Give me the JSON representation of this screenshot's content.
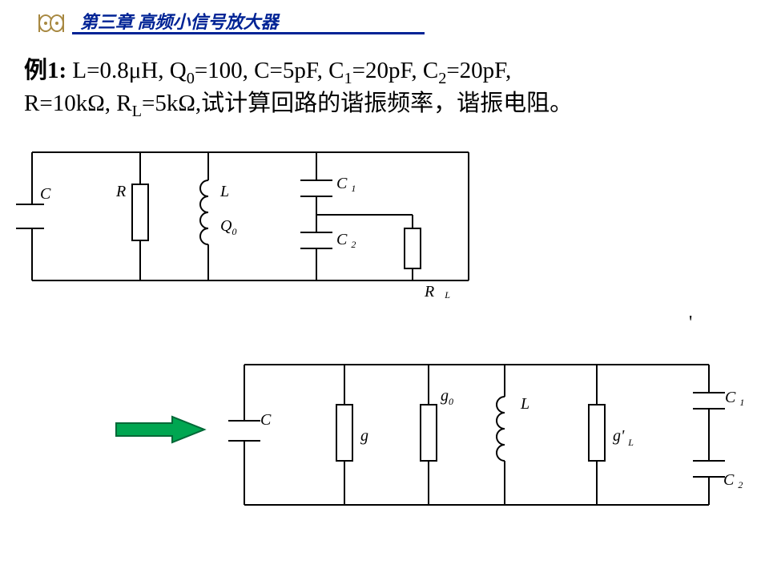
{
  "header": {
    "title": "第三章 高频小信号放大器",
    "line_color": "#002395",
    "icon_outline": "#a88942",
    "icon_fill": "#ffffff"
  },
  "problem": {
    "prefix": "例1:",
    "line1_html": " L=0.8μH, Q<sub>0</sub>=100, C=5pF, C<sub>1</sub>=20pF, C<sub>2</sub>=20pF,",
    "line2_html": "R=10kΩ, R<sub>L</sub>=5kΩ,试计算回路的谐振频率，谐振电阻。"
  },
  "labels": {
    "C": "C",
    "R": "R",
    "L": "L",
    "Q0": "Q",
    "Q0_sub": "0",
    "C1": "C",
    "C1_sub": "1",
    "C2": "C",
    "C2_sub": "2",
    "RL": "R",
    "RL_sub": "L",
    "g": "g",
    "g0": "g",
    "g0_sub": "0",
    "gPL": "g'",
    "gPL_sub": "L"
  },
  "arrow": {
    "fill": "#00a651",
    "stroke": "#006837"
  },
  "colors": {
    "wire": "#000000",
    "bg": "#ffffff"
  }
}
